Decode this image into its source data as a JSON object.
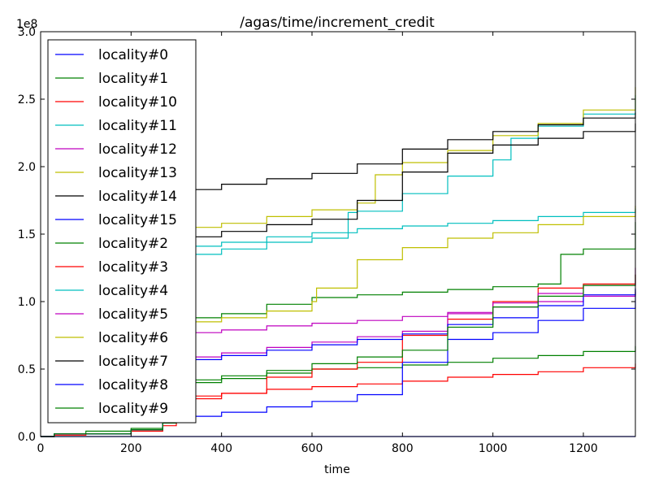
{
  "chart_data": {
    "type": "line",
    "title": "/agas/time/increment_credit",
    "xlabel": "time",
    "ylabel": "",
    "y_offset_label": "1e8",
    "xlim": [
      0,
      1315
    ],
    "ylim": [
      0,
      3.0
    ],
    "x_ticks": [
      0,
      200,
      400,
      600,
      800,
      1000,
      1200
    ],
    "x_tick_labels": [
      "0",
      "200",
      "400",
      "600",
      "800",
      "1000",
      "1200"
    ],
    "y_ticks": [
      0,
      0.5,
      1.0,
      1.5,
      2.0,
      2.5,
      3.0
    ],
    "y_tick_labels": [
      "0.0",
      "0.5",
      "1.0",
      "1.5",
      "2.0",
      "2.5",
      "3.0"
    ],
    "grid": false,
    "legend_position": "upper-left",
    "series": [
      {
        "name": "locality#0",
        "color": "#0000ff",
        "x": [
          0,
          1315
        ],
        "y": [
          0.0,
          0.0
        ]
      },
      {
        "name": "locality#1",
        "color": "#008000",
        "x": [
          0,
          30,
          100,
          200,
          270,
          300,
          400,
          500,
          600,
          700,
          800,
          900,
          1000,
          1100,
          1200,
          1315
        ],
        "y": [
          0.0,
          0.02,
          0.04,
          0.06,
          0.1,
          0.4,
          0.43,
          0.47,
          0.5,
          0.51,
          0.53,
          0.55,
          0.58,
          0.6,
          0.63,
          0.67
        ]
      },
      {
        "name": "locality#10",
        "color": "#ff0000",
        "x": [
          0,
          30,
          100,
          200,
          270,
          300,
          400,
          500,
          600,
          700,
          800,
          900,
          1000,
          1100,
          1200,
          1315
        ],
        "y": [
          0.0,
          0.01,
          0.02,
          0.04,
          0.08,
          0.3,
          0.32,
          0.35,
          0.37,
          0.39,
          0.41,
          0.44,
          0.46,
          0.48,
          0.51,
          0.54
        ]
      },
      {
        "name": "locality#11",
        "color": "#00bfbf",
        "x": [
          0,
          30,
          200,
          270,
          300,
          400,
          500,
          600,
          680,
          700,
          800,
          900,
          1000,
          1040,
          1100,
          1200,
          1315
        ],
        "y": [
          0.0,
          0.02,
          0.05,
          0.1,
          1.35,
          1.39,
          1.44,
          1.47,
          1.66,
          1.67,
          1.8,
          1.93,
          2.05,
          2.21,
          2.3,
          2.39,
          2.53
        ]
      },
      {
        "name": "locality#12",
        "color": "#bf00bf",
        "x": [
          0,
          30,
          200,
          270,
          300,
          400,
          500,
          600,
          700,
          800,
          900,
          1000,
          1100,
          1200,
          1315
        ],
        "y": [
          0.0,
          0.02,
          0.05,
          0.1,
          0.77,
          0.79,
          0.82,
          0.84,
          0.86,
          0.89,
          0.92,
          0.96,
          1.0,
          1.04,
          1.07
        ]
      },
      {
        "name": "locality#13",
        "color": "#bfbf00",
        "x": [
          0,
          30,
          200,
          270,
          300,
          400,
          500,
          600,
          700,
          740,
          800,
          900,
          1000,
          1100,
          1200,
          1315
        ],
        "y": [
          0.0,
          0.02,
          0.05,
          0.1,
          1.55,
          1.58,
          1.63,
          1.68,
          1.73,
          1.94,
          2.03,
          2.12,
          2.23,
          2.32,
          2.42,
          2.59
        ]
      },
      {
        "name": "locality#14",
        "color": "#000000",
        "x": [
          0,
          30,
          200,
          270,
          300,
          400,
          500,
          600,
          700,
          800,
          900,
          1000,
          1100,
          1200,
          1315
        ],
        "y": [
          0.0,
          0.02,
          0.05,
          0.1,
          1.48,
          1.52,
          1.57,
          1.61,
          1.75,
          1.96,
          2.1,
          2.16,
          2.21,
          2.26,
          2.32
        ]
      },
      {
        "name": "locality#15",
        "color": "#0000ff",
        "x": [
          0,
          30,
          200,
          270,
          300,
          400,
          500,
          600,
          700,
          800,
          900,
          1000,
          1100,
          1200,
          1315
        ],
        "y": [
          0.0,
          0.02,
          0.05,
          0.1,
          0.15,
          0.18,
          0.22,
          0.26,
          0.31,
          0.55,
          0.72,
          0.77,
          0.86,
          0.95,
          1.1
        ]
      },
      {
        "name": "locality#2",
        "color": "#008000",
        "x": [
          0,
          30,
          200,
          270,
          300,
          400,
          500,
          600,
          700,
          800,
          900,
          1000,
          1100,
          1150,
          1200,
          1315
        ],
        "y": [
          0.0,
          0.02,
          0.05,
          0.1,
          0.88,
          0.91,
          0.98,
          1.03,
          1.05,
          1.07,
          1.09,
          1.11,
          1.13,
          1.35,
          1.39,
          1.59
        ]
      },
      {
        "name": "locality#3",
        "color": "#ff0000",
        "x": [
          0,
          30,
          200,
          270,
          300,
          400,
          500,
          600,
          700,
          800,
          900,
          1000,
          1100,
          1200,
          1315
        ],
        "y": [
          0.0,
          0.02,
          0.05,
          0.1,
          0.28,
          0.32,
          0.44,
          0.5,
          0.55,
          0.75,
          0.87,
          1.0,
          1.1,
          1.13,
          1.2
        ]
      },
      {
        "name": "locality#4",
        "color": "#00bfbf",
        "x": [
          0,
          30,
          200,
          270,
          300,
          400,
          500,
          600,
          700,
          800,
          900,
          1000,
          1100,
          1200,
          1315
        ],
        "y": [
          0.0,
          0.02,
          0.05,
          0.1,
          1.41,
          1.44,
          1.48,
          1.51,
          1.54,
          1.56,
          1.58,
          1.6,
          1.63,
          1.66,
          1.69
        ]
      },
      {
        "name": "locality#5",
        "color": "#bf00bf",
        "x": [
          0,
          30,
          200,
          270,
          300,
          400,
          500,
          600,
          700,
          800,
          900,
          1000,
          1100,
          1200,
          1315
        ],
        "y": [
          0.0,
          0.02,
          0.05,
          0.1,
          0.59,
          0.62,
          0.66,
          0.7,
          0.74,
          0.78,
          0.91,
          0.99,
          1.06,
          1.12,
          1.25
        ]
      },
      {
        "name": "locality#6",
        "color": "#bfbf00",
        "x": [
          0,
          30,
          200,
          270,
          300,
          400,
          500,
          600,
          610,
          700,
          800,
          900,
          1000,
          1100,
          1200,
          1315
        ],
        "y": [
          0.0,
          0.02,
          0.05,
          0.1,
          0.85,
          0.88,
          0.93,
          1.0,
          1.1,
          1.31,
          1.4,
          1.47,
          1.51,
          1.57,
          1.63,
          1.71
        ]
      },
      {
        "name": "locality#7",
        "color": "#000000",
        "x": [
          0,
          30,
          200,
          270,
          300,
          400,
          500,
          600,
          700,
          800,
          900,
          1000,
          1100,
          1200,
          1315
        ],
        "y": [
          0.0,
          0.02,
          0.05,
          0.1,
          1.83,
          1.87,
          1.91,
          1.95,
          2.02,
          2.13,
          2.2,
          2.26,
          2.31,
          2.36,
          2.4
        ]
      },
      {
        "name": "locality#8",
        "color": "#0000ff",
        "x": [
          0,
          30,
          200,
          270,
          300,
          400,
          500,
          600,
          700,
          800,
          900,
          1000,
          1100,
          1200,
          1315
        ],
        "y": [
          0.0,
          0.02,
          0.05,
          0.1,
          0.57,
          0.6,
          0.64,
          0.68,
          0.72,
          0.76,
          0.83,
          0.88,
          0.97,
          1.05,
          1.09
        ]
      },
      {
        "name": "locality#9",
        "color": "#008000",
        "x": [
          0,
          30,
          200,
          270,
          300,
          400,
          500,
          600,
          700,
          800,
          900,
          1000,
          1100,
          1200,
          1315
        ],
        "y": [
          0.0,
          0.02,
          0.05,
          0.1,
          0.42,
          0.45,
          0.49,
          0.54,
          0.59,
          0.64,
          0.81,
          0.96,
          1.04,
          1.12,
          1.2
        ]
      }
    ]
  }
}
